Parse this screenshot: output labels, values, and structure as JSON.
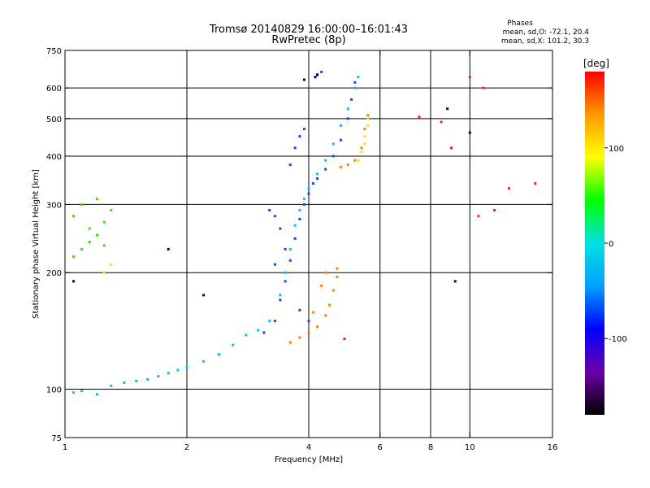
{
  "chart_data": {
    "type": "scatter",
    "title": "Tromsø 20140829 16:00:00–16:01:43",
    "subtitle": "RwPretec (8p)",
    "xlabel": "Frequency [MHz]",
    "ylabel": "Stationary phase Virtual Height [km]",
    "x_scale": "log",
    "y_scale": "log",
    "xlim": [
      1,
      16
    ],
    "ylim": [
      75,
      750
    ],
    "x_ticks": [
      1,
      2,
      4,
      6,
      8,
      10,
      16
    ],
    "y_ticks": [
      75,
      100,
      200,
      300,
      400,
      500,
      600,
      750
    ],
    "x_grid": [
      2,
      4,
      6,
      8,
      10
    ],
    "y_grid": [
      100,
      200,
      300,
      400,
      500,
      600
    ],
    "grid": true,
    "stats_title": "Phases",
    "stats_lines": [
      "mean, sd,O: -72.1, 20.4",
      "mean, sd,X: 101.2, 30.3"
    ],
    "colorbar": {
      "label": "[deg]",
      "range": [
        -180,
        180
      ],
      "ticks": [
        100,
        0,
        -100
      ],
      "colors": [
        "#000000",
        "#6a00a8",
        "#0000ff",
        "#00a0ff",
        "#00e0e0",
        "#00ff00",
        "#ffff00",
        "#ff9900",
        "#ff0000"
      ]
    },
    "series": [
      {
        "color": "#00c0ff",
        "points": [
          [
            1.05,
            98
          ],
          [
            1.1,
            99
          ],
          [
            1.2,
            97
          ],
          [
            1.3,
            102
          ],
          [
            1.4,
            104
          ],
          [
            1.5,
            105
          ],
          [
            1.6,
            106
          ],
          [
            1.7,
            108
          ],
          [
            1.8,
            110
          ],
          [
            1.9,
            112
          ],
          [
            2.0,
            114
          ],
          [
            2.2,
            118
          ],
          [
            2.4,
            123
          ],
          [
            2.6,
            130
          ],
          [
            2.8,
            138
          ],
          [
            3.0,
            142
          ],
          [
            3.2,
            150
          ],
          [
            3.4,
            175
          ],
          [
            3.5,
            200
          ],
          [
            3.6,
            230
          ],
          [
            3.7,
            265
          ],
          [
            3.8,
            290
          ],
          [
            3.9,
            310
          ],
          [
            4.0,
            330
          ],
          [
            4.2,
            360
          ],
          [
            4.4,
            390
          ],
          [
            4.6,
            430
          ],
          [
            4.8,
            480
          ],
          [
            5.0,
            530
          ],
          [
            5.2,
            600
          ],
          [
            5.3,
            640
          ]
        ]
      },
      {
        "color": "#2040ff",
        "points": [
          [
            3.1,
            140
          ],
          [
            3.3,
            150
          ],
          [
            3.4,
            170
          ],
          [
            3.5,
            190
          ],
          [
            3.6,
            215
          ],
          [
            3.7,
            245
          ],
          [
            3.8,
            275
          ],
          [
            3.9,
            300
          ],
          [
            4.0,
            320
          ],
          [
            4.1,
            340
          ],
          [
            4.2,
            350
          ],
          [
            4.4,
            370
          ],
          [
            4.6,
            400
          ],
          [
            4.8,
            440
          ],
          [
            5.0,
            500
          ],
          [
            5.1,
            560
          ],
          [
            5.2,
            620
          ],
          [
            3.4,
            260
          ],
          [
            3.3,
            280
          ],
          [
            3.2,
            290
          ],
          [
            3.6,
            380
          ],
          [
            3.7,
            420
          ],
          [
            3.8,
            450
          ],
          [
            3.9,
            470
          ],
          [
            4.2,
            650
          ],
          [
            4.3,
            660
          ],
          [
            3.3,
            210
          ],
          [
            3.5,
            230
          ],
          [
            3.8,
            160
          ],
          [
            4.0,
            150
          ]
        ]
      },
      {
        "color": "#ff8000",
        "points": [
          [
            3.6,
            132
          ],
          [
            3.8,
            136
          ],
          [
            4.0,
            140
          ],
          [
            4.2,
            145
          ],
          [
            4.4,
            155
          ],
          [
            4.5,
            165
          ],
          [
            4.6,
            180
          ],
          [
            4.7,
            195
          ],
          [
            4.7,
            205
          ],
          [
            4.8,
            375
          ],
          [
            5.0,
            380
          ],
          [
            5.2,
            390
          ],
          [
            5.4,
            420
          ],
          [
            5.5,
            470
          ],
          [
            5.6,
            510
          ],
          [
            4.4,
            200
          ],
          [
            4.3,
            185
          ],
          [
            4.1,
            158
          ]
        ]
      },
      {
        "color": "#40e000",
        "points": [
          [
            1.05,
            220
          ],
          [
            1.1,
            230
          ],
          [
            1.15,
            240
          ],
          [
            1.2,
            250
          ],
          [
            1.25,
            270
          ],
          [
            1.3,
            290
          ],
          [
            1.1,
            300
          ],
          [
            1.2,
            310
          ],
          [
            1.15,
            260
          ],
          [
            1.25,
            235
          ],
          [
            1.05,
            280
          ]
        ]
      },
      {
        "color": "#ffe000",
        "points": [
          [
            5.3,
            390
          ],
          [
            5.4,
            410
          ],
          [
            5.5,
            430
          ],
          [
            5.5,
            450
          ],
          [
            5.6,
            480
          ],
          [
            5.6,
            500
          ],
          [
            1.3,
            210
          ],
          [
            1.25,
            200
          ]
        ]
      },
      {
        "color": "#ff2020",
        "points": [
          [
            10.0,
            640
          ],
          [
            10.8,
            600
          ],
          [
            9.0,
            420
          ],
          [
            10.5,
            280
          ],
          [
            11.5,
            290
          ],
          [
            12.5,
            330
          ],
          [
            14.5,
            340
          ],
          [
            7.5,
            505
          ],
          [
            8.5,
            490
          ],
          [
            4.9,
            135
          ]
        ]
      },
      {
        "color": "#000080",
        "points": [
          [
            4.2,
            648
          ],
          [
            4.15,
            640
          ],
          [
            3.9,
            630
          ],
          [
            1.05,
            190
          ],
          [
            9.2,
            190
          ],
          [
            8.8,
            530
          ],
          [
            10.0,
            460
          ],
          [
            1.8,
            230
          ],
          [
            2.2,
            175
          ]
        ]
      }
    ]
  }
}
